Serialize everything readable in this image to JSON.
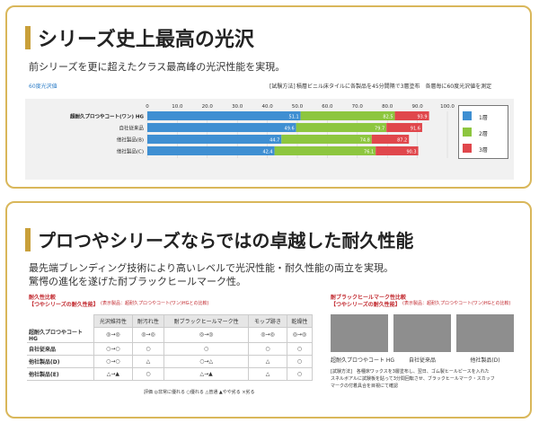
{
  "panel1": {
    "title": "シリーズ史上最高の光沢",
    "subtitle": "前シリーズを更に超えたクラス最高峰の光沢性能を実現。",
    "chart_caption": "60度光沢値",
    "test_method_label": "[試験方法]",
    "test_method_text": "積層ビニル床タイルに各製品を45分間隔で3層塗布　各層毎に60度光沢値を測定"
  },
  "chart_data": {
    "type": "bar",
    "stacked": true,
    "categories": [
      "超耐久プロつやコート(ワン) HG",
      "自社従来品",
      "他社製品(B)",
      "他社製品(C)"
    ],
    "series": [
      {
        "name": "1層",
        "cumulative_labels": [
          51.1,
          49.6,
          44.7,
          42.4
        ],
        "color": "#3f8fd2"
      },
      {
        "name": "2層",
        "cumulative_labels": [
          82.5,
          79.7,
          74.8,
          76.1
        ],
        "color": "#8dc63f"
      },
      {
        "name": "3層",
        "cumulative_labels": [
          93.9,
          91.6,
          87.2,
          90.3
        ],
        "color": "#e0474c"
      }
    ],
    "xticks": [
      "0",
      "10.0",
      "20.0",
      "30.0",
      "40.0",
      "50.0",
      "60.0",
      "70.0",
      "80.0",
      "90.0",
      "100.0"
    ],
    "xlim": [
      0,
      100
    ],
    "legend_position": "right"
  },
  "panel2": {
    "title": "プロつやシリーズならではの卓越した耐久性能",
    "subtitle1": "最先端ブレンディング技術により高いレベルで光沢性能・耐久性能の両立を実現。",
    "subtitle2": "驚愕の進化を遂げた耐ブラックヒールマーク性。",
    "table_heading1": "耐久性比較",
    "table_heading2": "【つやシリーズの耐久性能】",
    "table_heading_note": "(表示製品：超耐久プロつやコート(ワン)HGとの比較)",
    "table_headers": [
      "光沢維持性",
      "耐汚れ性",
      "耐ブラックヒールマーク性",
      "モップ跡き",
      "乾燥性"
    ],
    "table_rows": [
      {
        "name": "超耐久プロつやコート HG",
        "cells": [
          "◎→◎",
          "◎→◎",
          "◎→◎",
          "◎→◎",
          "◎→◎"
        ]
      },
      {
        "name": "自社従来品",
        "cells": [
          "○→○",
          "○",
          "○",
          "○",
          "○"
        ]
      },
      {
        "name": "他社製品(D)",
        "cells": [
          "○→○",
          "△",
          "○→△",
          "△",
          "○"
        ]
      },
      {
        "name": "他社製品(E)",
        "cells": [
          "△→▲",
          "○",
          "△→▲",
          "△",
          "○"
        ]
      }
    ],
    "legend_note": "評価 ◎非常に優れる ○優れる △普通 ▲やや劣る ×劣る",
    "bhm_heading1": "耐ブラックヒールマーク性比較",
    "bhm_heading2": "【つやシリーズの耐久性能】",
    "bhm_heading_note": "(表示製品：超耐久プロつやコート(ワン)HGとの比較)",
    "samples": [
      "超耐久プロつやコート HG",
      "自社従来品",
      "他社製品(D)"
    ],
    "bhm_method1": "[試験方法]　各種床ワックスを3層塗布し、翌日、ゴム製ヒールピースを入れた",
    "bhm_method2": "スネルボアルに試験板を貼って3分間回転させ、ブラックヒールマーク・スカッフ",
    "bhm_method3": "マークの付着具合を目視にて確認"
  }
}
